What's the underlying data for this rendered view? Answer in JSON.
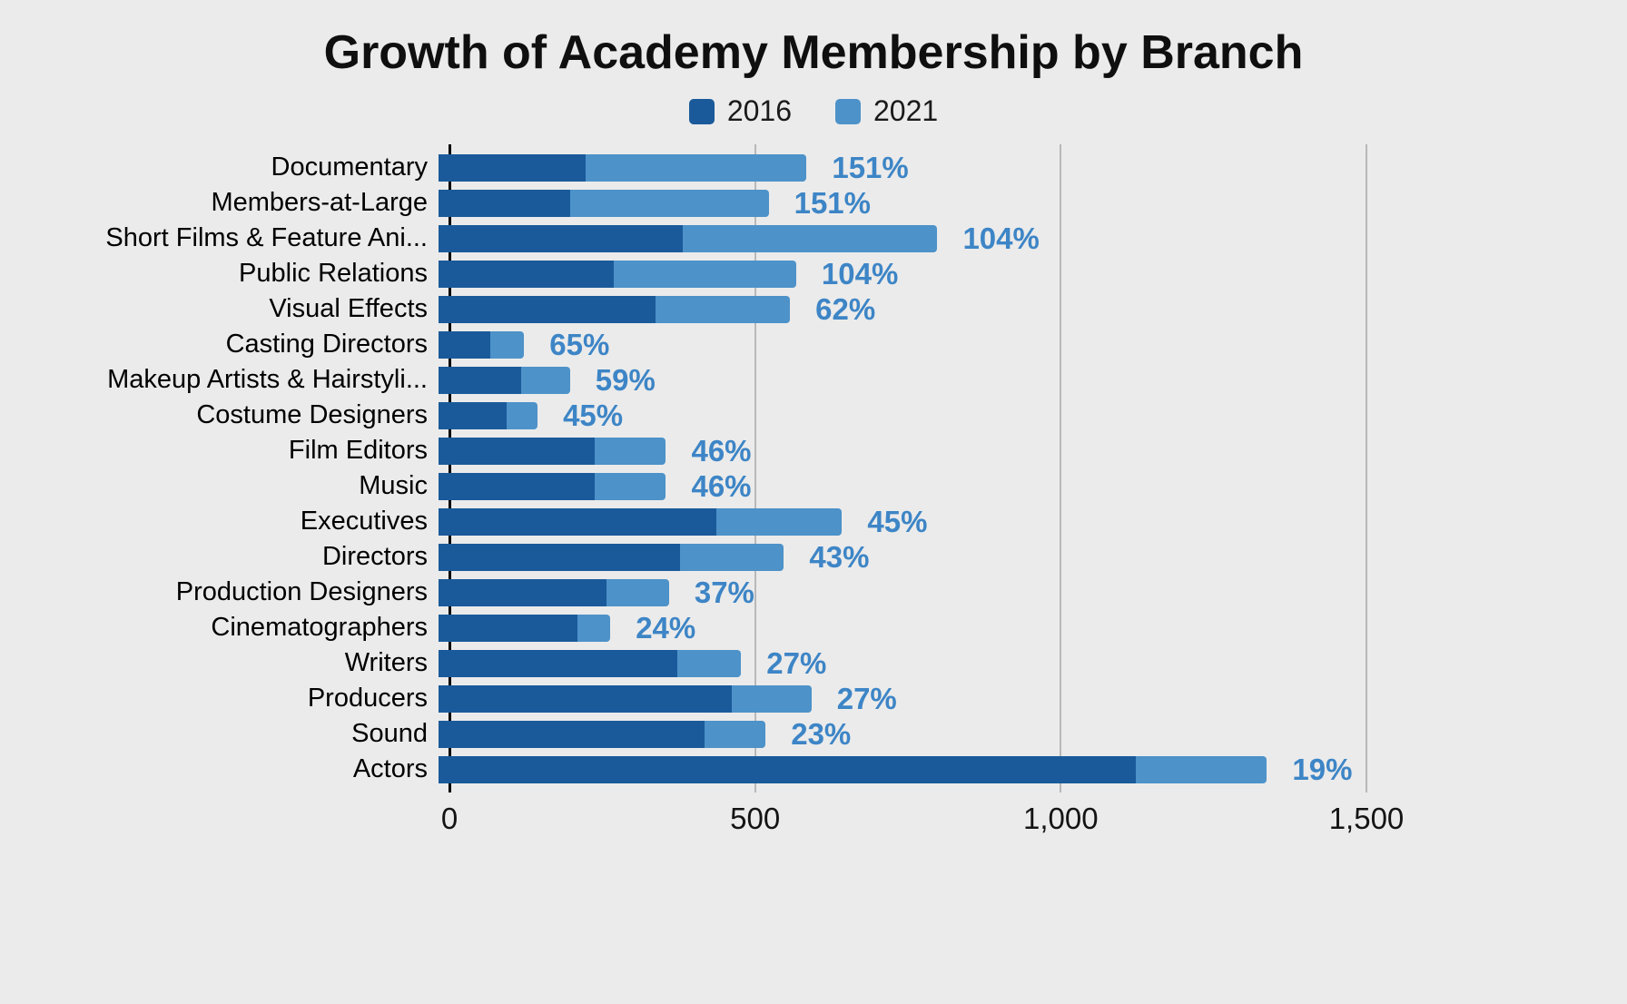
{
  "title": "Growth of Academy Membership by Branch",
  "legend": {
    "items": [
      {
        "label": "2016",
        "color": "#1a5a9a"
      },
      {
        "label": "2021",
        "color": "#4d92c9"
      }
    ]
  },
  "colors": {
    "background": "#ebebeb",
    "bar_2016": "#1a5a9a",
    "bar_2021": "#4d92c9",
    "growth_label": "#3d85c6",
    "gridline": "#b8b8b8",
    "axis_line": "#000000",
    "text": "#000000"
  },
  "chart_data": {
    "type": "bar",
    "orientation": "horizontal",
    "title": "Growth of Academy Membership by Branch",
    "grid": true,
    "legend_position": "top",
    "xlim": [
      0,
      1500
    ],
    "x_ticks": [
      {
        "value": 0,
        "label": "0"
      },
      {
        "value": 500,
        "label": "500"
      },
      {
        "value": 1000,
        "label": "1,000"
      },
      {
        "value": 1500,
        "label": "1,500"
      }
    ],
    "categories": [
      "Documentary",
      "Members-at-Large",
      "Short Films & Feature Ani...",
      "Public Relations",
      "Visual Effects",
      "Casting Directors",
      "Makeup Artists & Hairstyli...",
      "Costume Designers",
      "Film Editors",
      "Music",
      "Executives",
      "Directors",
      "Production Designers",
      "Cinematographers",
      "Writers",
      "Producers",
      "Sound",
      "Actors"
    ],
    "series": [
      {
        "name": "2016",
        "values": [
          240,
          215,
          400,
          287,
          355,
          85,
          135,
          112,
          255,
          255,
          455,
          395,
          275,
          227,
          390,
          480,
          435,
          1140
        ]
      },
      {
        "name": "2021",
        "values": [
          602,
          540,
          816,
          585,
          575,
          140,
          215,
          162,
          372,
          372,
          660,
          565,
          377,
          281,
          495,
          610,
          535,
          1355
        ]
      }
    ],
    "growth_labels": [
      "151%",
      "151%",
      "104%",
      "104%",
      "62%",
      "65%",
      "59%",
      "45%",
      "46%",
      "46%",
      "45%",
      "43%",
      "37%",
      "24%",
      "27%",
      "27%",
      "23%",
      "19%"
    ]
  }
}
